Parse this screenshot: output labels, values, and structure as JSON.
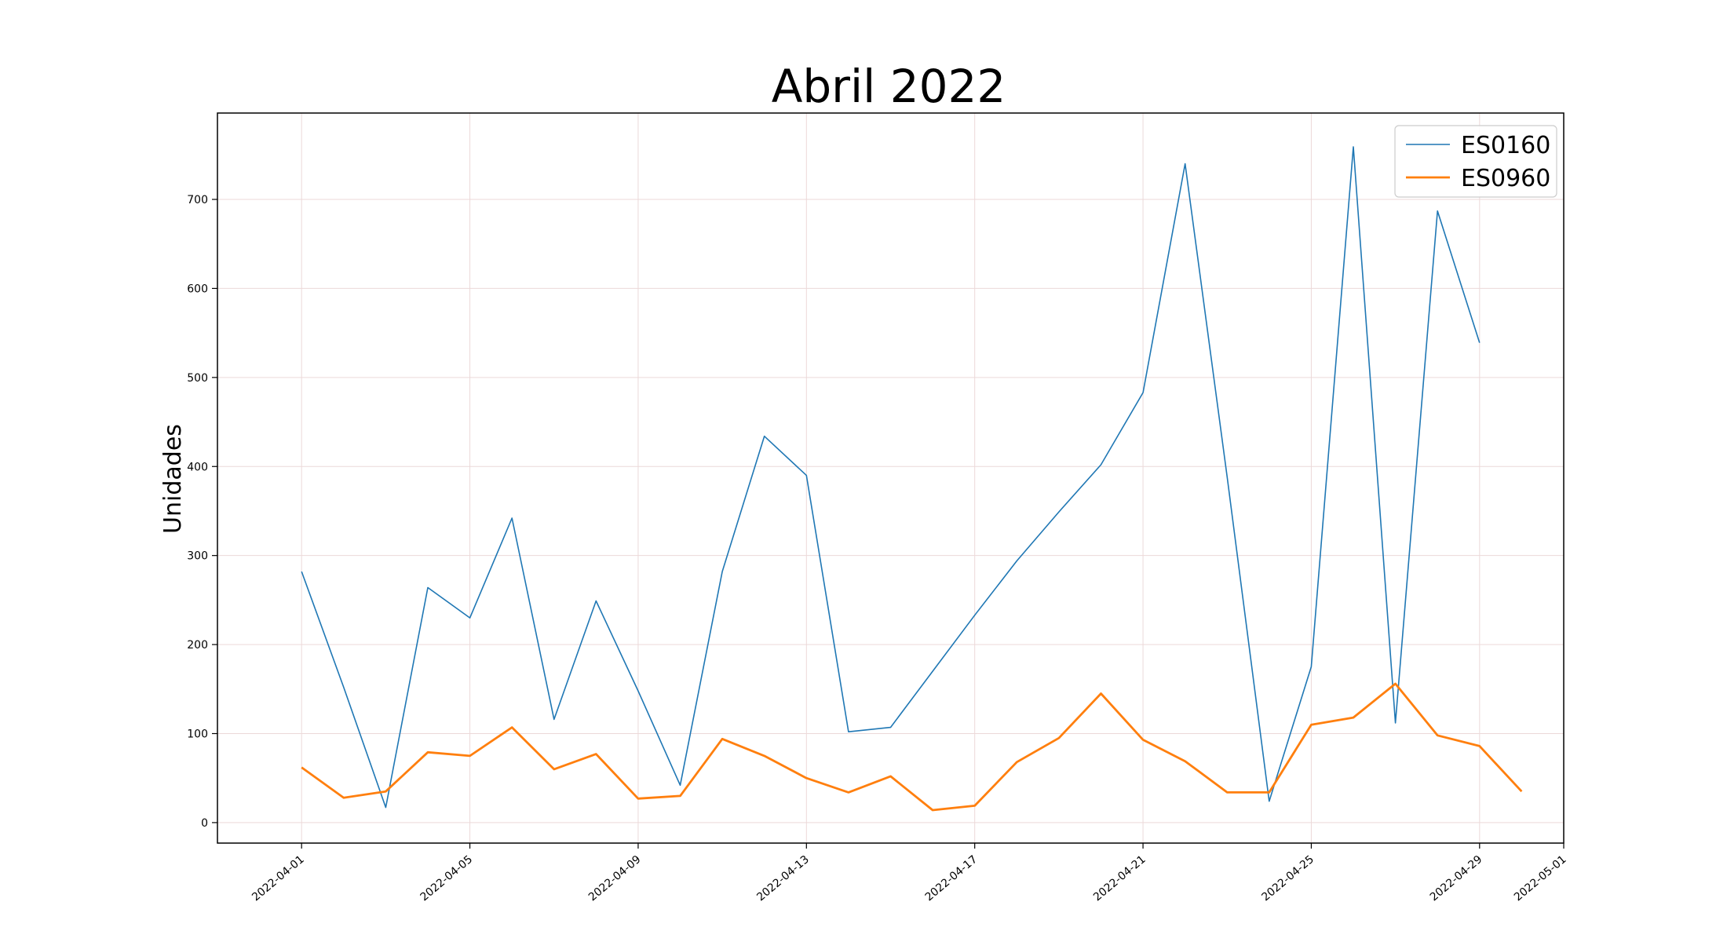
{
  "chart_data": {
    "type": "line",
    "title": "Abril 2022",
    "xlabel": "",
    "ylabel": "Unidades",
    "xlim": [
      "2022-03-30",
      "2022-05-01"
    ],
    "ylim": [
      -23,
      797
    ],
    "x_ticks": [
      "2022-04-01",
      "2022-04-05",
      "2022-04-09",
      "2022-04-13",
      "2022-04-17",
      "2022-04-21",
      "2022-04-25",
      "2022-04-29",
      "2022-05-01"
    ],
    "y_ticks": [
      0,
      100,
      200,
      300,
      400,
      500,
      600,
      700
    ],
    "grid": true,
    "legend": "top-right",
    "series": [
      {
        "name": "ES0160",
        "color": "#1f77b4",
        "x": [
          "2022-04-01",
          "2022-04-02",
          "2022-04-03",
          "2022-04-04",
          "2022-04-05",
          "2022-04-06",
          "2022-04-07",
          "2022-04-08",
          "2022-04-09",
          "2022-04-10",
          "2022-04-11",
          "2022-04-12",
          "2022-04-13",
          "2022-04-14",
          "2022-04-15",
          "2022-04-16",
          "2022-04-17",
          "2022-04-18",
          "2022-04-19",
          "2022-04-20",
          "2022-04-21",
          "2022-04-22",
          "2022-04-23",
          "2022-04-24",
          "2022-04-25",
          "2022-04-26",
          "2022-04-27",
          "2022-04-28",
          "2022-04-29"
        ],
        "values": [
          282,
          152,
          17,
          264,
          230,
          342,
          116,
          249,
          148,
          42,
          282,
          434,
          390,
          102,
          107,
          170,
          233,
          294,
          349,
          402,
          483,
          740,
          388,
          24,
          175,
          759,
          112,
          687,
          539
        ]
      },
      {
        "name": "ES0960",
        "color": "#ff7f0e",
        "x": [
          "2022-04-01",
          "2022-04-02",
          "2022-04-03",
          "2022-04-04",
          "2022-04-05",
          "2022-04-06",
          "2022-04-07",
          "2022-04-08",
          "2022-04-09",
          "2022-04-10",
          "2022-04-11",
          "2022-04-12",
          "2022-04-13",
          "2022-04-14",
          "2022-04-15",
          "2022-04-16",
          "2022-04-17",
          "2022-04-18",
          "2022-04-19",
          "2022-04-20",
          "2022-04-21",
          "2022-04-22",
          "2022-04-23",
          "2022-04-24",
          "2022-04-25",
          "2022-04-26",
          "2022-04-27",
          "2022-04-28",
          "2022-04-29",
          "2022-04-30"
        ],
        "values": [
          62,
          28,
          35,
          79,
          75,
          107,
          60,
          77,
          27,
          30,
          94,
          75,
          50,
          34,
          52,
          14,
          19,
          68,
          95,
          145,
          93,
          69,
          34,
          34,
          110,
          118,
          156,
          98,
          86,
          35
        ]
      }
    ]
  }
}
